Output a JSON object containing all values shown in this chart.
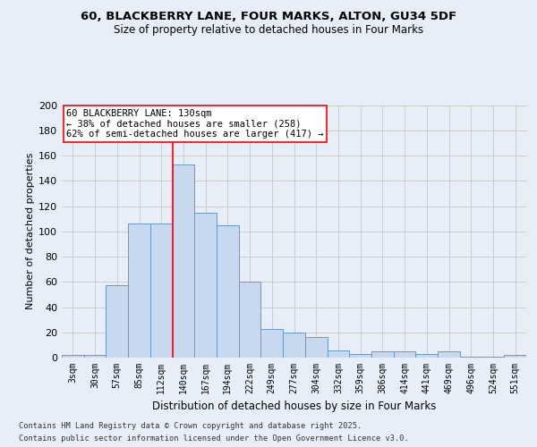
{
  "title_line1": "60, BLACKBERRY LANE, FOUR MARKS, ALTON, GU34 5DF",
  "title_line2": "Size of property relative to detached houses in Four Marks",
  "xlabel": "Distribution of detached houses by size in Four Marks",
  "ylabel": "Number of detached properties",
  "categories": [
    "3sqm",
    "30sqm",
    "57sqm",
    "85sqm",
    "112sqm",
    "140sqm",
    "167sqm",
    "194sqm",
    "222sqm",
    "249sqm",
    "277sqm",
    "304sqm",
    "332sqm",
    "359sqm",
    "386sqm",
    "414sqm",
    "441sqm",
    "469sqm",
    "496sqm",
    "524sqm",
    "551sqm"
  ],
  "values": [
    2,
    2,
    57,
    106,
    106,
    153,
    115,
    105,
    60,
    23,
    20,
    16,
    6,
    3,
    5,
    5,
    3,
    5,
    1,
    1,
    2
  ],
  "bar_color": "#c8d8ee",
  "bar_edge_color": "#6699cc",
  "grid_color": "#cccccc",
  "vline_x": 4.5,
  "vline_color": "red",
  "annotation_text": "60 BLACKBERRY LANE: 130sqm\n← 38% of detached houses are smaller (258)\n62% of semi-detached houses are larger (417) →",
  "annotation_box_color": "white",
  "annotation_box_edge": "red",
  "footer_line1": "Contains HM Land Registry data © Crown copyright and database right 2025.",
  "footer_line2": "Contains public sector information licensed under the Open Government Licence v3.0.",
  "ylim": [
    0,
    200
  ],
  "yticks": [
    0,
    20,
    40,
    60,
    80,
    100,
    120,
    140,
    160,
    180,
    200
  ],
  "bg_color": "#e8eef8",
  "plot_bg_color": "#e8eef8"
}
